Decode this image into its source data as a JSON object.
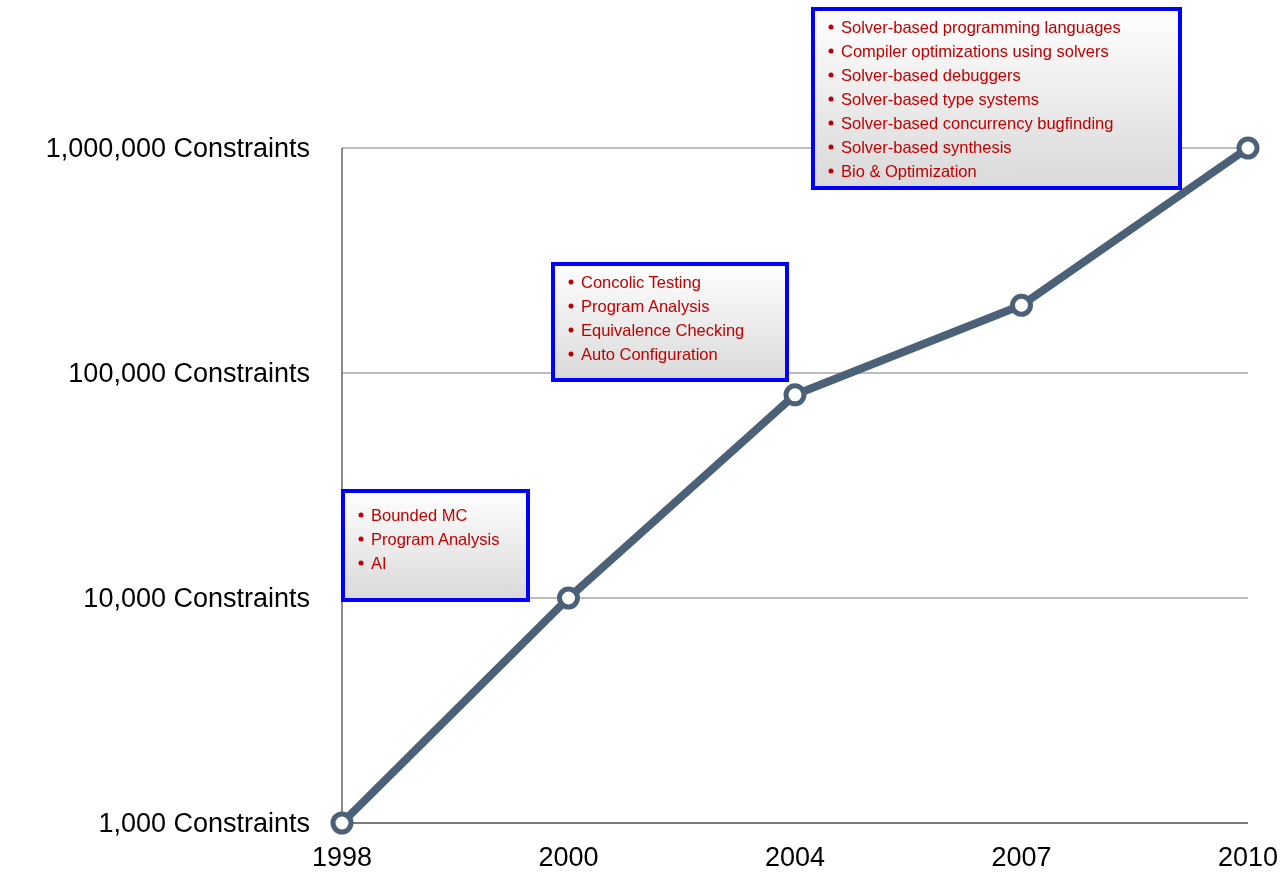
{
  "chart_data": {
    "type": "line",
    "categories": [
      "1998",
      "2000",
      "2004",
      "2007",
      "2010"
    ],
    "series": [
      {
        "color": "#4b6178",
        "values": [
          1000,
          10000,
          80000,
          200000,
          1000000
        ]
      }
    ],
    "log": "y",
    "ylim": [
      1000,
      1000000
    ],
    "yticks": [
      {
        "value": 1000,
        "label": "1,000 Constraints"
      },
      {
        "value": 10000,
        "label": "10,000 Constraints"
      },
      {
        "value": 100000,
        "label": "100,000 Constraints"
      },
      {
        "value": 1000000,
        "label": "1,000,000 Constraints"
      }
    ],
    "grid": "y",
    "marker": "circle",
    "line_style": "solid",
    "annotations": [
      "Bounded MC\nProgram Analysis\nAI",
      "Concolic Testing\nProgram Analysis\nEquivalence Checking\nAuto Configuration",
      "Solver-based programming languages\nCompiler optimizations using solvers\nSolver-based debuggers\nSolver-based type systems\nSolver-based concurrency bugfinding\nSolver-based synthesis\nBio & Optimization"
    ]
  }
}
